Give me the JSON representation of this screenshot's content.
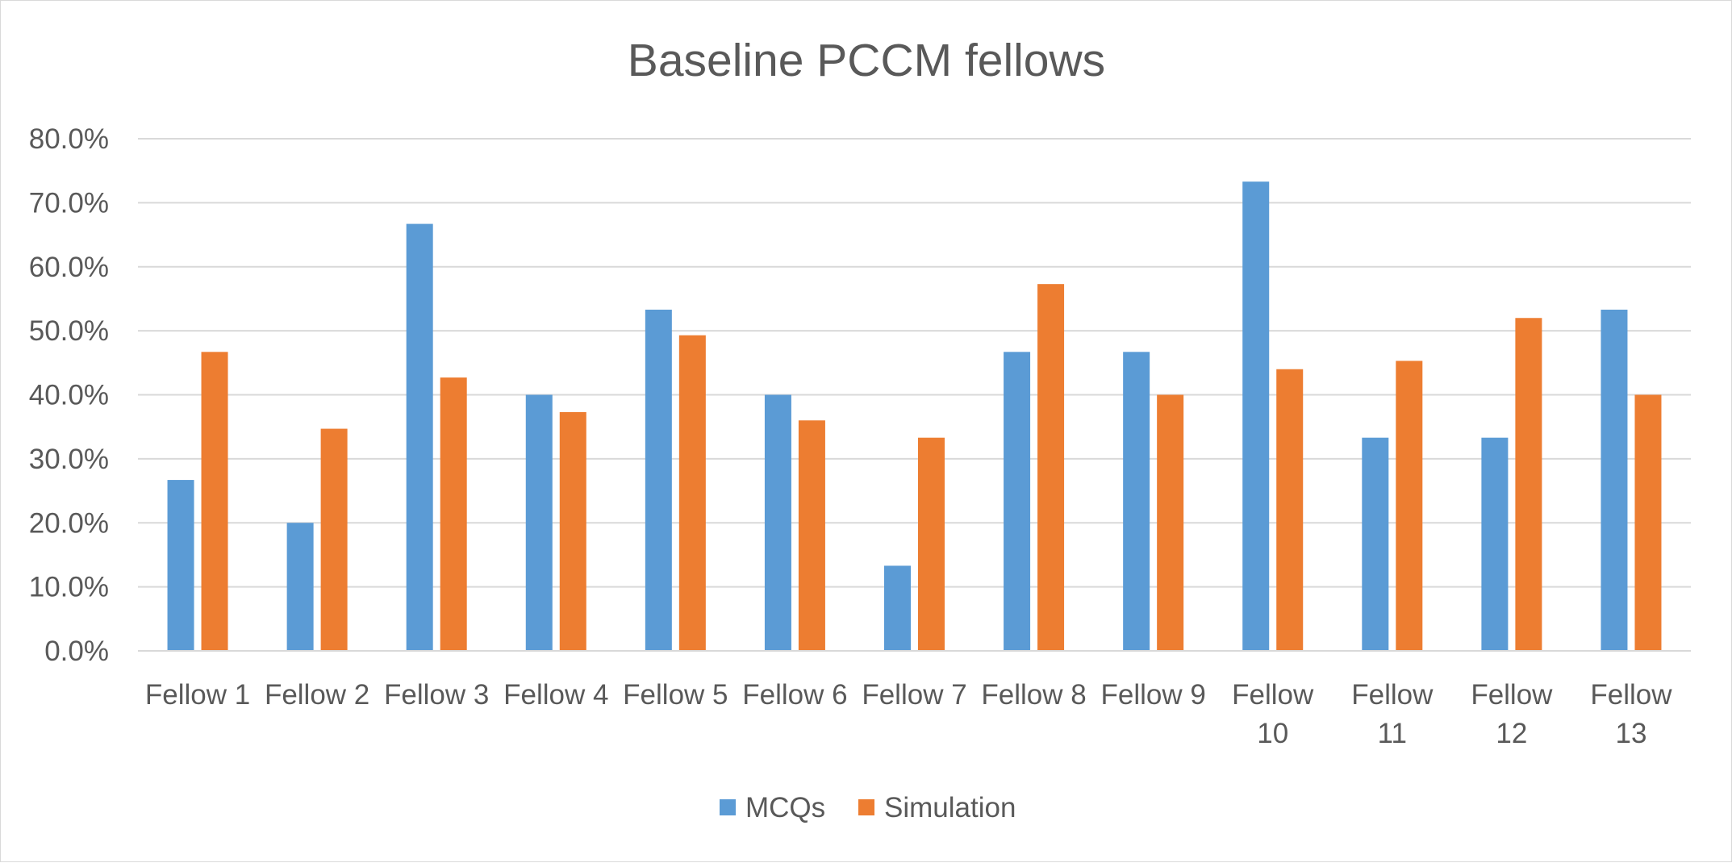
{
  "chart_data": {
    "type": "bar",
    "title": "Baseline PCCM fellows",
    "xlabel": "",
    "ylabel": "",
    "categories": [
      [
        "Fellow 1"
      ],
      [
        "Fellow 2"
      ],
      [
        "Fellow 3"
      ],
      [
        "Fellow 4"
      ],
      [
        "Fellow 5"
      ],
      [
        "Fellow 6"
      ],
      [
        "Fellow 7"
      ],
      [
        "Fellow 8"
      ],
      [
        "Fellow 9"
      ],
      [
        "Fellow",
        "10"
      ],
      [
        "Fellow",
        "11"
      ],
      [
        "Fellow",
        "12"
      ],
      [
        "Fellow",
        "13"
      ]
    ],
    "series": [
      {
        "name": "MCQs",
        "color": "#5b9bd5",
        "values": [
          26.7,
          20.0,
          66.7,
          40.0,
          53.3,
          40.0,
          13.3,
          46.7,
          46.7,
          73.3,
          33.3,
          33.3,
          53.3
        ]
      },
      {
        "name": "Simulation",
        "color": "#ed7d31",
        "values": [
          46.7,
          34.7,
          42.7,
          37.3,
          49.3,
          36.0,
          33.3,
          57.3,
          40.0,
          44.0,
          45.3,
          52.0,
          40.0
        ]
      }
    ],
    "ylim": [
      0,
      80
    ],
    "yticks": [
      "0.0%",
      "10.0%",
      "20.0%",
      "30.0%",
      "40.0%",
      "50.0%",
      "60.0%",
      "70.0%",
      "80.0%"
    ],
    "ytick_values": [
      0,
      10,
      20,
      30,
      40,
      50,
      60,
      70,
      80
    ],
    "grid": true,
    "gridline_color": "#d9d9d9",
    "legend_position": "bottom"
  }
}
